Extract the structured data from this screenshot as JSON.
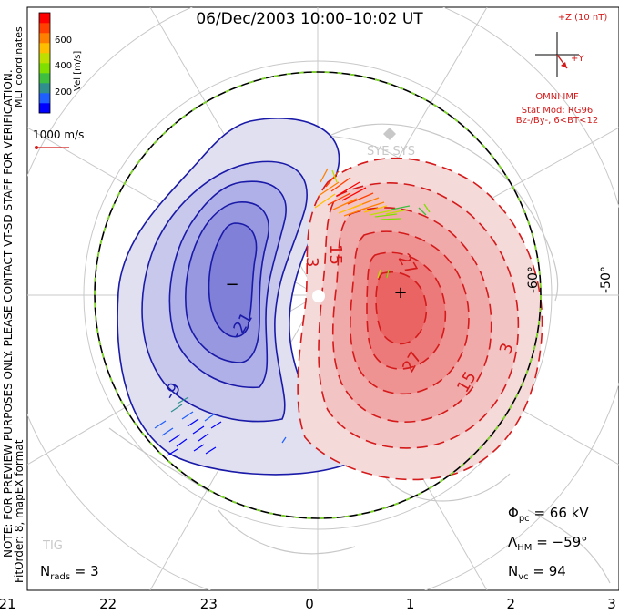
{
  "chart_data": {
    "type": "polar-contour",
    "title": "06/Dec/2003 10:00–10:02 UT",
    "coordinates_label": "MLT coordinates",
    "watermark_lines": [
      "NOTE: FOR PREVIEW PURPOSES ONLY. PLEASE CONTACT VT-SD STAFF FOR VERIFICATION.",
      "FitOrder: 8, mapEX format"
    ],
    "velocity_scale": {
      "label": "Vel [m/s]",
      "ticks": [
        "200",
        "400",
        "600"
      ],
      "colors": [
        "#0000ff",
        "#1f5fff",
        "#2f8f8f",
        "#3fbf3f",
        "#7fdf00",
        "#bfdf00",
        "#ffbf00",
        "#ff7f00",
        "#ff4000",
        "#ff0000"
      ]
    },
    "reference_vector": {
      "label": "1000 m/s"
    },
    "imf": {
      "clock_label_z": "+Z (10 nT)",
      "clock_label_y": "+Y",
      "source": "OMNI IMF",
      "stat_model": "Stat Mod: RG96",
      "condition": "Bz-/By-, 6<BT<12"
    },
    "mlt_ticks": [
      "21",
      "22",
      "23",
      "0",
      "1",
      "2",
      "3"
    ],
    "latitude_labels": [
      "-60°",
      "-50°"
    ],
    "negative_contours": [
      "-9",
      "-21"
    ],
    "positive_contours": [
      "3",
      "15",
      "27",
      "15",
      "27",
      "15",
      "3"
    ],
    "min_marker": "−",
    "max_marker": "+",
    "map_labels": [
      "SYE SYS",
      "TIG"
    ],
    "stats": {
      "phi_pc_label": "Φ",
      "phi_pc_sub": "pc",
      "phi_pc_value": " = 66 kV",
      "hm_label": "Λ",
      "hm_sub": "HM",
      "hm_value": " = −59°",
      "nvc_label": "N",
      "nvc_sub": "vc",
      "nvc_value": " = 94",
      "nrads_label": "N",
      "nrads_sub": "rads",
      "nrads_value": " = 3"
    },
    "colors": {
      "negative": "#1a1aa8",
      "positive": "#d41a1a",
      "imf": "#d41a1a",
      "boundary_green": "#7fd62a"
    }
  }
}
